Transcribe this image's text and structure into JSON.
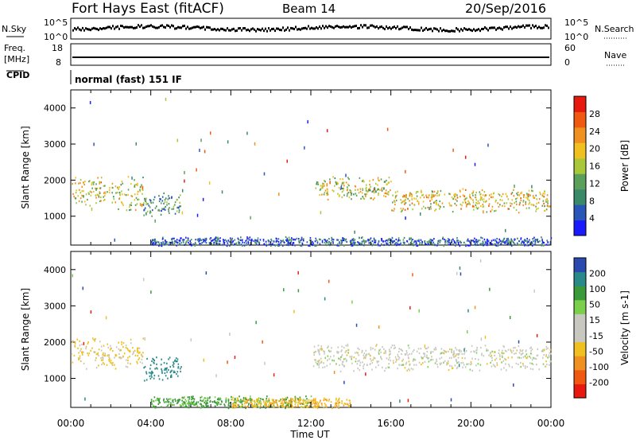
{
  "header": {
    "station": "Fort Hays East (fitACF)",
    "beam": "Beam 14",
    "date": "20/Sep/2016"
  },
  "top_panels": {
    "nsky": {
      "left_label": "N.Sky",
      "right_label": "N.Search",
      "left_ticks": [
        "10^5",
        "10^0"
      ],
      "right_ticks": [
        "10^5",
        "10^0"
      ]
    },
    "freq": {
      "left_label_1": "Freq.",
      "left_label_2": "[MHz]",
      "right_label": "Nave",
      "left_ticks": [
        "18",
        "8"
      ],
      "right_ticks": [
        "60",
        "0"
      ]
    },
    "cpid": {
      "label": "CPID",
      "text": "normal (fast) 151 IF"
    }
  },
  "colors": {
    "power_scale": [
      "#1a1aff",
      "#2a56b8",
      "#3a8a6a",
      "#5aa05a",
      "#a8c83a",
      "#f0c020",
      "#f09020",
      "#f05a10",
      "#e81a10"
    ],
    "velocity_scale": [
      "#e81a10",
      "#f05a10",
      "#f09020",
      "#f0c020",
      "#c8c8c0",
      "#c8c8c0",
      "#7ad04a",
      "#3a9a3a",
      "#2a8a8a",
      "#2a4ab0"
    ]
  },
  "chart_data": [
    {
      "type": "heatmap",
      "panel": "power",
      "ylabel": "Slant Range [km]",
      "yticks": [
        "4000",
        "3000",
        "2000",
        "1000"
      ],
      "ylim": [
        200,
        4500
      ],
      "xlim": [
        0,
        24
      ],
      "colorbar_label": "Power [dB]",
      "colorbar_ticks": [
        "28",
        "24",
        "20",
        "16",
        "12",
        "8",
        "4"
      ],
      "colorbar_range": [
        0,
        32
      ],
      "scatter_bands": [
        {
          "t_start": 0.0,
          "t_end": 2.1,
          "r_center": 1700,
          "r_width": 450,
          "level": 18
        },
        {
          "t_start": 2.1,
          "t_end": 3.6,
          "r_center": 1650,
          "r_width": 500,
          "level": 16
        },
        {
          "t_start": 3.6,
          "t_end": 5.5,
          "r_center": 1350,
          "r_width": 350,
          "level": 10
        },
        {
          "t_start": 12.1,
          "t_end": 16.0,
          "r_center": 1800,
          "r_width": 350,
          "level": 17
        },
        {
          "t_start": 16.0,
          "t_end": 24.0,
          "r_center": 1450,
          "r_width": 350,
          "level": 19
        },
        {
          "t_start": 4.0,
          "t_end": 24.0,
          "r_center": 300,
          "r_width": 150,
          "level": 6
        }
      ]
    },
    {
      "type": "heatmap",
      "panel": "velocity",
      "ylabel": "Slant Range [km]",
      "yticks": [
        "4000",
        "3000",
        "2000",
        "1000"
      ],
      "ylim": [
        200,
        4500
      ],
      "xlim": [
        0,
        24
      ],
      "xlabel": "Time UT",
      "xticks": [
        "00:00",
        "04:00",
        "08:00",
        "12:00",
        "16:00",
        "20:00",
        "00:00"
      ],
      "colorbar_label": "Velocity [m s-1]",
      "colorbar_ticks": [
        "200",
        "100",
        "50",
        "15",
        "-15",
        "-50",
        "-100",
        "-200"
      ],
      "scatter_bands": [
        {
          "t_start": 0.0,
          "t_end": 3.6,
          "r_center": 1700,
          "r_width": 450,
          "level": -20
        },
        {
          "t_start": 3.6,
          "t_end": 5.5,
          "r_center": 1300,
          "r_width": 350,
          "level": 180
        },
        {
          "t_start": 12.1,
          "t_end": 24.0,
          "r_center": 1600,
          "r_width": 400,
          "level": 0
        },
        {
          "t_start": 4.0,
          "t_end": 12.0,
          "r_center": 350,
          "r_width": 200,
          "level": 60
        },
        {
          "t_start": 8.0,
          "t_end": 14.0,
          "r_center": 330,
          "r_width": 180,
          "level": -40
        }
      ]
    }
  ]
}
